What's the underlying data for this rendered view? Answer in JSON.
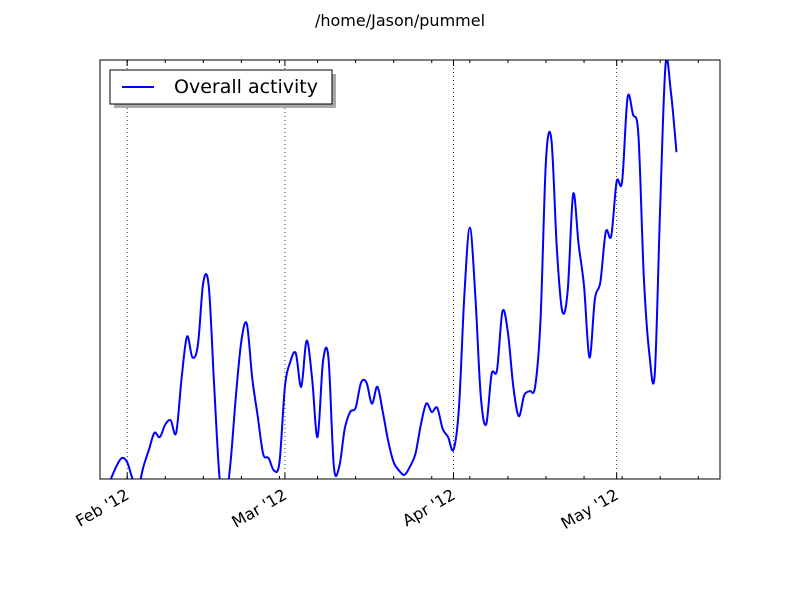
{
  "chart_data": {
    "type": "line",
    "title": "/home/Jason/pummel",
    "xlabel": "",
    "ylabel": "",
    "legend": {
      "placement": "top-left",
      "shadow": true
    },
    "grid": {
      "x": true,
      "y": false,
      "style": "dotted"
    },
    "xlim": [
      "2012-01-27",
      "2012-05-20"
    ],
    "ylim": [
      0,
      100
    ],
    "x_ticks": [
      {
        "date": "2012-02-01",
        "label": "Feb '12"
      },
      {
        "date": "2012-03-01",
        "label": "Mar '12"
      },
      {
        "date": "2012-04-01",
        "label": "Apr '12"
      },
      {
        "date": "2012-05-01",
        "label": "May '12"
      }
    ],
    "series": [
      {
        "name": "Overall activity",
        "color": "#0000ff",
        "points": [
          [
            "2012-01-29",
            0
          ],
          [
            "2012-01-30",
            3
          ],
          [
            "2012-01-31",
            5
          ],
          [
            "2012-02-01",
            4
          ],
          [
            "2012-02-02",
            0
          ],
          [
            "2012-02-03",
            -2
          ],
          [
            "2012-02-04",
            3
          ],
          [
            "2012-02-05",
            7
          ],
          [
            "2012-02-06",
            11
          ],
          [
            "2012-02-07",
            10
          ],
          [
            "2012-02-08",
            13
          ],
          [
            "2012-02-09",
            14
          ],
          [
            "2012-02-10",
            11
          ],
          [
            "2012-02-11",
            24
          ],
          [
            "2012-02-12",
            34
          ],
          [
            "2012-02-13",
            29
          ],
          [
            "2012-02-14",
            32
          ],
          [
            "2012-02-15",
            47
          ],
          [
            "2012-02-16",
            46
          ],
          [
            "2012-02-17",
            22
          ],
          [
            "2012-02-18",
            0
          ],
          [
            "2012-02-19",
            -6
          ],
          [
            "2012-02-20",
            4
          ],
          [
            "2012-02-21",
            20
          ],
          [
            "2012-02-22",
            33
          ],
          [
            "2012-02-23",
            37
          ],
          [
            "2012-02-24",
            24
          ],
          [
            "2012-02-25",
            15
          ],
          [
            "2012-02-26",
            6
          ],
          [
            "2012-02-27",
            5
          ],
          [
            "2012-02-28",
            2
          ],
          [
            "2012-02-29",
            4
          ],
          [
            "2012-03-01",
            22
          ],
          [
            "2012-03-02",
            28
          ],
          [
            "2012-03-03",
            30
          ],
          [
            "2012-03-04",
            22
          ],
          [
            "2012-03-05",
            33
          ],
          [
            "2012-03-06",
            24
          ],
          [
            "2012-03-07",
            10
          ],
          [
            "2012-03-08",
            28
          ],
          [
            "2012-03-09",
            29
          ],
          [
            "2012-03-10",
            3
          ],
          [
            "2012-03-11",
            3
          ],
          [
            "2012-03-12",
            12
          ],
          [
            "2012-03-13",
            16
          ],
          [
            "2012-03-14",
            17
          ],
          [
            "2012-03-15",
            23
          ],
          [
            "2012-03-16",
            23
          ],
          [
            "2012-03-17",
            18
          ],
          [
            "2012-03-18",
            22
          ],
          [
            "2012-03-19",
            16
          ],
          [
            "2012-03-20",
            9
          ],
          [
            "2012-03-21",
            4
          ],
          [
            "2012-03-22",
            2
          ],
          [
            "2012-03-23",
            1
          ],
          [
            "2012-03-24",
            3
          ],
          [
            "2012-03-25",
            6
          ],
          [
            "2012-03-26",
            13
          ],
          [
            "2012-03-27",
            18
          ],
          [
            "2012-03-28",
            16
          ],
          [
            "2012-03-29",
            17
          ],
          [
            "2012-03-30",
            12
          ],
          [
            "2012-03-31",
            10
          ],
          [
            "2012-04-01",
            7
          ],
          [
            "2012-04-02",
            17
          ],
          [
            "2012-04-03",
            44
          ],
          [
            "2012-04-04",
            60
          ],
          [
            "2012-04-05",
            44
          ],
          [
            "2012-04-06",
            20
          ],
          [
            "2012-04-07",
            13
          ],
          [
            "2012-04-08",
            25
          ],
          [
            "2012-04-09",
            26
          ],
          [
            "2012-04-10",
            40
          ],
          [
            "2012-04-11",
            35
          ],
          [
            "2012-04-12",
            22
          ],
          [
            "2012-04-13",
            15
          ],
          [
            "2012-04-14",
            20
          ],
          [
            "2012-04-15",
            21
          ],
          [
            "2012-04-16",
            22
          ],
          [
            "2012-04-17",
            38
          ],
          [
            "2012-04-18",
            76
          ],
          [
            "2012-04-19",
            81
          ],
          [
            "2012-04-20",
            55
          ],
          [
            "2012-04-21",
            40
          ],
          [
            "2012-04-22",
            45
          ],
          [
            "2012-04-23",
            68
          ],
          [
            "2012-04-24",
            56
          ],
          [
            "2012-04-25",
            46
          ],
          [
            "2012-04-26",
            29
          ],
          [
            "2012-04-27",
            43
          ],
          [
            "2012-04-28",
            47
          ],
          [
            "2012-04-29",
            59
          ],
          [
            "2012-04-30",
            58
          ],
          [
            "2012-05-01",
            71
          ],
          [
            "2012-05-02",
            71
          ],
          [
            "2012-05-03",
            91
          ],
          [
            "2012-05-04",
            87
          ],
          [
            "2012-05-05",
            82
          ],
          [
            "2012-05-06",
            48
          ],
          [
            "2012-05-07",
            30
          ],
          [
            "2012-05-08",
            25
          ],
          [
            "2012-05-09",
            65
          ],
          [
            "2012-05-10",
            99
          ],
          [
            "2012-05-11",
            92
          ],
          [
            "2012-05-12",
            78
          ]
        ]
      }
    ]
  }
}
